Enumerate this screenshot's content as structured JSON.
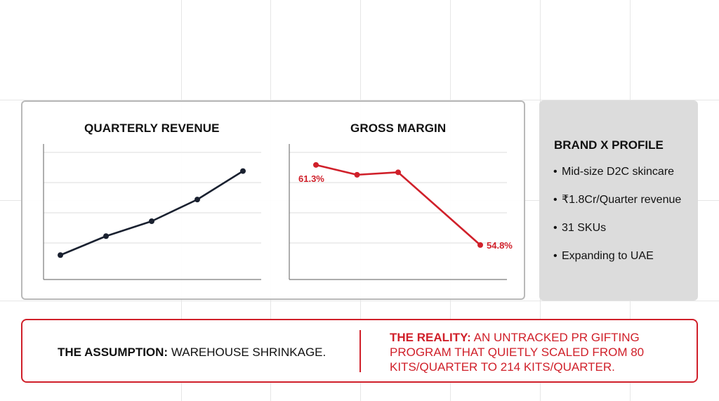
{
  "chart_data": [
    {
      "type": "line",
      "title": "QUARTERLY REVENUE",
      "x": [
        1,
        2,
        3,
        4,
        5
      ],
      "series": [
        {
          "values": [
            18,
            32,
            43,
            59,
            80
          ]
        }
      ],
      "ylim": [
        0,
        100
      ],
      "xlabel": "",
      "ylabel": "",
      "grid": true,
      "color": "#1a2130"
    },
    {
      "type": "line",
      "title": "GROSS MARGIN",
      "x": [
        1,
        2,
        3,
        4,
        5
      ],
      "series": [
        {
          "values": [
            61.3,
            60.5,
            60.7,
            null,
            54.8
          ]
        }
      ],
      "data_labels": [
        "61.3%",
        "54.8%"
      ],
      "ylim": [
        52,
        63
      ],
      "xlabel": "",
      "ylabel": "",
      "grid": true,
      "color": "#d0202a"
    }
  ],
  "profile": {
    "title": "BRAND X PROFILE",
    "bullet": "•",
    "items": [
      "Mid-size D2C skincare",
      "₹1.8Cr/Quarter revenue",
      "31 SKUs",
      "Expanding to UAE"
    ]
  },
  "callout": {
    "assumption_label": "THE ASSUMPTION:",
    "assumption_text": "WAREHOUSE SHRINKAGE.",
    "reality_label": "THE REALITY:",
    "reality_lines": [
      "AN UNTRACKED PR GIFTING",
      "PROGRAM THAT QUIETLY SCALED FROM 80",
      "KITS/QUARTER TO 214 KITS/QUARTER."
    ]
  },
  "colors": {
    "accent": "#d0202a",
    "ink": "#111111",
    "revenue_line": "#1a2130",
    "panel_grey": "#dcdcdc"
  }
}
